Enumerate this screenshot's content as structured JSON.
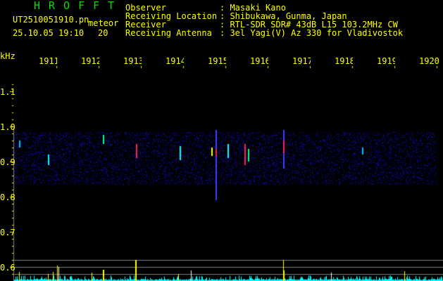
{
  "app_title": "HROFFT",
  "file": {
    "name": "UT2510051910.pn",
    "mode": "meteor",
    "datetime": "25.10.05 19:10",
    "extra": "20"
  },
  "info": [
    {
      "label": "Observer",
      "value": "Masaki Kano"
    },
    {
      "label": "Receiving Location",
      "value": "Shibukawa, Gunma, Japan"
    },
    {
      "label": "Receiver",
      "value": "RTL-SDR SDR# 43dB L15 103.2MHz CW"
    },
    {
      "label": "Receiving Antenna",
      "value": "3el Yagi(V) Az 330 for Vladivostok"
    }
  ],
  "axis": {
    "y_unit": "kHz",
    "y_ticks": [
      "1.1",
      "1.0",
      "0.9",
      "0.8",
      "0.7",
      "0.6"
    ],
    "x_ticks": [
      "1911",
      "1912",
      "1913",
      "1914",
      "1915",
      "1916",
      "1917",
      "1918",
      "1919",
      "1920"
    ]
  },
  "colors": {
    "text": "#ffff00",
    "title": "#00e000",
    "noise": "#1010c0",
    "meteor": "#ff2060",
    "level": "#00ffff"
  }
}
